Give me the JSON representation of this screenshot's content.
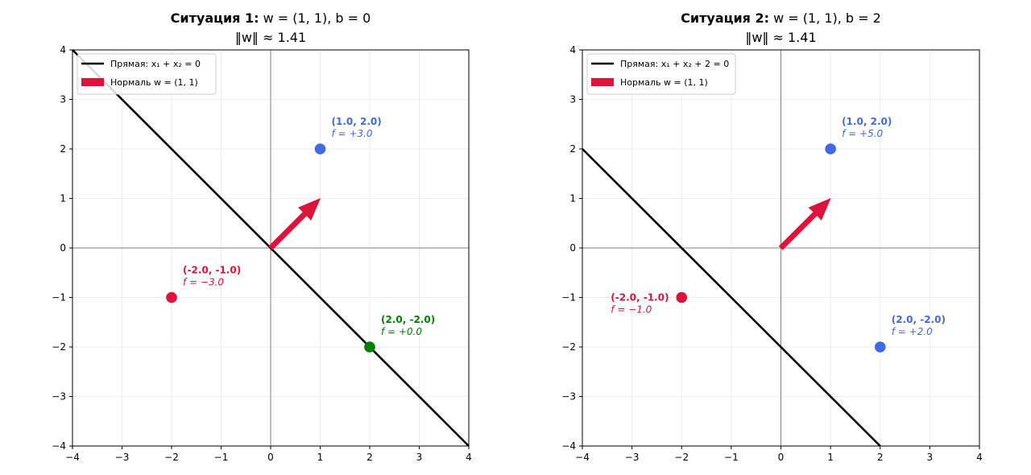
{
  "chart_data": [
    {
      "type": "line",
      "title": "Ситуация 1: w = (1, 1), b = 0",
      "title_parts": {
        "prefix": "Ситуация 1:",
        "math": "w = (1, 1), b = 0"
      },
      "subtitle": "‖w‖ ≈ 1.41",
      "xlabel": "",
      "ylabel": "",
      "xlim": [
        -4,
        4
      ],
      "ylim": [
        -4,
        4
      ],
      "x_ticks": [
        -4,
        -3,
        -2,
        -1,
        0,
        1,
        2,
        3,
        4
      ],
      "y_ticks": [
        -4,
        -3,
        -2,
        -1,
        0,
        1,
        2,
        3,
        4
      ],
      "x_tick_labels": [
        "−4",
        "−3",
        "−2",
        "−1",
        "0",
        "1",
        "2",
        "3",
        "4"
      ],
      "y_tick_labels": [
        "−4",
        "−3",
        "−2",
        "−1",
        "0",
        "1",
        "2",
        "3",
        "4"
      ],
      "grid": true,
      "legend_position": "top-left",
      "legend": [
        {
          "label": "Прямая: x₁ + x₂ = 0",
          "kind": "line",
          "color": "#000000"
        },
        {
          "label": "Нормаль w = (1, 1)",
          "kind": "patch",
          "color": "#dc143c"
        }
      ],
      "line": {
        "name": "Прямая: x₁ + x₂ = 0",
        "x": [
          -4,
          4
        ],
        "y": [
          4,
          -4
        ],
        "color": "#000000"
      },
      "normal_arrow": {
        "from": [
          0,
          0
        ],
        "to": [
          1,
          1
        ],
        "color": "#dc143c"
      },
      "points": [
        {
          "x": 1.0,
          "y": 2.0,
          "label": "(1.0, 2.0)",
          "f_label": "f = +3.0",
          "color": "#4169e1"
        },
        {
          "x": -2.0,
          "y": -1.0,
          "label": "(-2.0, -1.0)",
          "f_label": "f = −3.0",
          "color": "#dc143c"
        },
        {
          "x": 2.0,
          "y": -2.0,
          "label": "(2.0, -2.0)",
          "f_label": "f = +0.0",
          "color": "#008000"
        }
      ]
    },
    {
      "type": "line",
      "title": "Ситуация 2: w = (1, 1), b = 2",
      "title_parts": {
        "prefix": "Ситуация 2:",
        "math": "w = (1, 1), b = 2"
      },
      "subtitle": "‖w‖ ≈ 1.41",
      "xlabel": "",
      "ylabel": "",
      "xlim": [
        -4,
        4
      ],
      "ylim": [
        -4,
        4
      ],
      "x_ticks": [
        -4,
        -3,
        -2,
        -1,
        0,
        1,
        2,
        3,
        4
      ],
      "y_ticks": [
        -4,
        -3,
        -2,
        -1,
        0,
        1,
        2,
        3,
        4
      ],
      "x_tick_labels": [
        "−4",
        "−3",
        "−2",
        "−1",
        "0",
        "1",
        "2",
        "3",
        "4"
      ],
      "y_tick_labels": [
        "−4",
        "−3",
        "−2",
        "−1",
        "0",
        "1",
        "2",
        "3",
        "4"
      ],
      "grid": true,
      "legend_position": "top-left",
      "legend": [
        {
          "label": "Прямая: x₁ + x₂ + 2 = 0",
          "kind": "line",
          "color": "#000000"
        },
        {
          "label": "Нормаль w = (1, 1)",
          "kind": "patch",
          "color": "#dc143c"
        }
      ],
      "line": {
        "name": "Прямая: x₁ + x₂ + 2 = 0",
        "x": [
          -4,
          2
        ],
        "y": [
          2,
          -4
        ],
        "color": "#000000"
      },
      "normal_arrow": {
        "from": [
          0,
          0
        ],
        "to": [
          1,
          1
        ],
        "color": "#dc143c"
      },
      "points": [
        {
          "x": 1.0,
          "y": 2.0,
          "label": "(1.0, 2.0)",
          "f_label": "f = +5.0",
          "color": "#4169e1"
        },
        {
          "x": -2.0,
          "y": -1.0,
          "label": "(-2.0, -1.0)",
          "f_label": "f = −1.0",
          "color": "#dc143c"
        },
        {
          "x": 2.0,
          "y": -2.0,
          "label": "(2.0, -2.0)",
          "f_label": "f = +2.0",
          "color": "#4169e1"
        }
      ]
    }
  ]
}
